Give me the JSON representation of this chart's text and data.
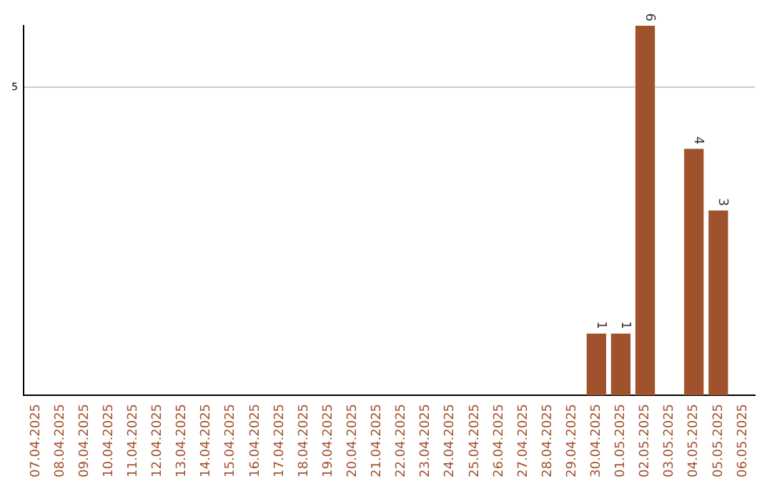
{
  "chart_data": {
    "type": "bar",
    "categories": [
      "07.04.2025",
      "08.04.2025",
      "09.04.2025",
      "10.04.2025",
      "11.04.2025",
      "12.04.2025",
      "13.04.2025",
      "14.04.2025",
      "15.04.2025",
      "16.04.2025",
      "17.04.2025",
      "18.04.2025",
      "19.04.2025",
      "20.04.2025",
      "21.04.2025",
      "22.04.2025",
      "23.04.2025",
      "24.04.2025",
      "25.04.2025",
      "26.04.2025",
      "27.04.2025",
      "28.04.2025",
      "29.04.2025",
      "30.04.2025",
      "01.05.2025",
      "02.05.2025",
      "03.05.2025",
      "04.05.2025",
      "05.05.2025",
      "06.05.2025"
    ],
    "values": [
      null,
      null,
      null,
      null,
      null,
      null,
      null,
      null,
      null,
      null,
      null,
      null,
      null,
      null,
      null,
      null,
      null,
      null,
      null,
      null,
      null,
      null,
      null,
      1,
      1,
      6,
      null,
      4,
      3,
      null
    ],
    "color": "#a0522d",
    "ylim": [
      0,
      6
    ],
    "yticks": [
      5
    ],
    "grid": "y",
    "data_labels": true,
    "legend": false
  }
}
